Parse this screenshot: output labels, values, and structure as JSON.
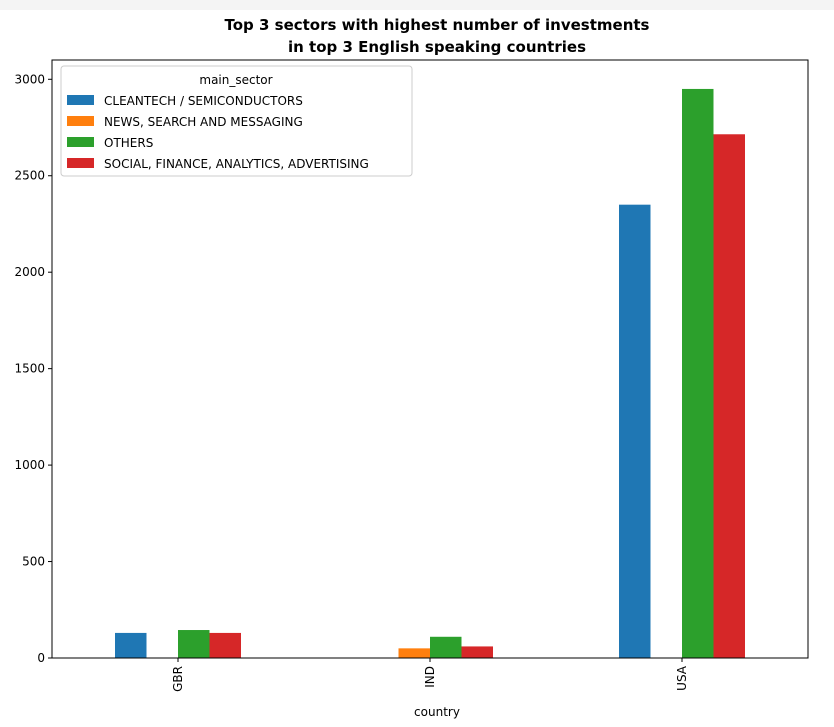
{
  "chart_data": {
    "type": "bar",
    "title_line1": "Top 3 sectors with highest number of investments",
    "title_line2": "in top 3 English speaking countries",
    "xlabel": "country",
    "ylabel": "",
    "categories": [
      "GBR",
      "IND",
      "USA"
    ],
    "ylim": [
      0,
      3100
    ],
    "yticks": [
      "0",
      "500",
      "1000",
      "1500",
      "2000",
      "2500",
      "3000"
    ],
    "legend": {
      "title": "main_sector",
      "placement": "top-left"
    },
    "grid": false,
    "series": [
      {
        "name": "CLEANTECH / SEMICONDUCTORS",
        "color": "#1f77b4",
        "values": [
          130,
          0,
          2350
        ]
      },
      {
        "name": "NEWS, SEARCH AND MESSAGING",
        "color": "#ff7f0e",
        "values": [
          0,
          50,
          0
        ]
      },
      {
        "name": "OTHERS",
        "color": "#2ca02c",
        "values": [
          145,
          110,
          2950
        ]
      },
      {
        "name": "SOCIAL, FINANCE, ANALYTICS, ADVERTISING",
        "color": "#d62728",
        "values": [
          130,
          60,
          2715
        ]
      }
    ]
  }
}
